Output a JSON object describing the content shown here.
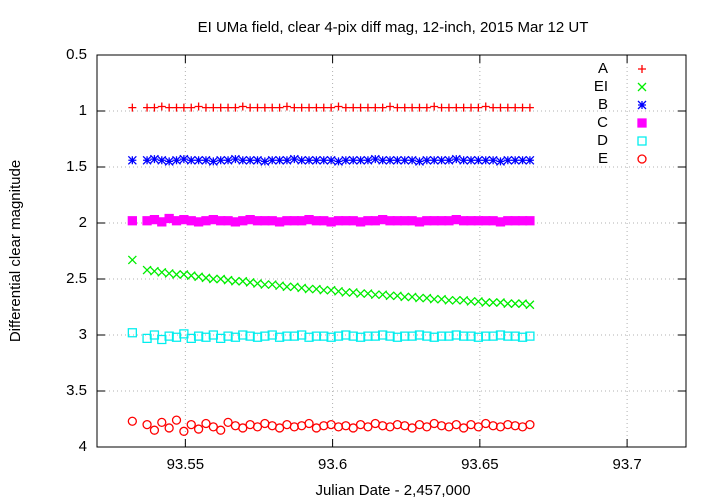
{
  "chart_data": {
    "type": "scatter",
    "title": "EI UMa field, clear 4-pix diff mag, 12-inch, 2015 Mar 12 UT",
    "x_label": "Julian Date - 2,457,000",
    "y_label": "Differential clear magnitude",
    "xlim": [
      93.52,
      93.72
    ],
    "xticks": [
      93.55,
      93.6,
      93.65,
      93.7
    ],
    "ylim": [
      4,
      0.5
    ],
    "yticks": [
      0.5,
      1,
      1.5,
      2,
      2.5,
      3,
      3.5,
      4
    ],
    "grid": true,
    "legend": "top-right",
    "x": [
      93.532,
      93.537,
      93.5395,
      93.542,
      93.5445,
      93.547,
      93.5495,
      93.552,
      93.5545,
      93.557,
      93.5595,
      93.562,
      93.5645,
      93.567,
      93.5695,
      93.572,
      93.5745,
      93.577,
      93.5795,
      93.582,
      93.5845,
      93.587,
      93.5895,
      93.592,
      93.5945,
      93.597,
      93.5995,
      93.602,
      93.6045,
      93.607,
      93.6095,
      93.612,
      93.6145,
      93.617,
      93.6195,
      93.622,
      93.6245,
      93.627,
      93.6295,
      93.632,
      93.6345,
      93.637,
      93.6395,
      93.642,
      93.6445,
      93.647,
      93.6495,
      93.652,
      93.6545,
      93.657,
      93.6595,
      93.662,
      93.6645,
      93.667
    ],
    "series": [
      {
        "name": "A",
        "color": "#ff0000",
        "marker": "plus",
        "values": [
          0.97,
          0.97,
          0.97,
          0.96,
          0.97,
          0.97,
          0.97,
          0.97,
          0.96,
          0.97,
          0.97,
          0.97,
          0.97,
          0.97,
          0.96,
          0.97,
          0.97,
          0.97,
          0.97,
          0.97,
          0.96,
          0.97,
          0.97,
          0.97,
          0.97,
          0.97,
          0.97,
          0.96,
          0.97,
          0.97,
          0.97,
          0.97,
          0.97,
          0.97,
          0.96,
          0.97,
          0.97,
          0.97,
          0.97,
          0.97,
          0.96,
          0.97,
          0.97,
          0.97,
          0.97,
          0.97,
          0.97,
          0.96,
          0.97,
          0.97,
          0.97,
          0.97,
          0.97,
          0.97
        ]
      },
      {
        "name": "EI",
        "color": "#00ee00",
        "marker": "cross",
        "values": [
          2.33,
          2.42,
          2.43,
          2.44,
          2.45,
          2.46,
          2.46,
          2.47,
          2.48,
          2.49,
          2.5,
          2.5,
          2.51,
          2.52,
          2.52,
          2.53,
          2.54,
          2.55,
          2.55,
          2.56,
          2.57,
          2.57,
          2.58,
          2.59,
          2.59,
          2.6,
          2.6,
          2.61,
          2.62,
          2.62,
          2.63,
          2.63,
          2.64,
          2.64,
          2.65,
          2.65,
          2.66,
          2.66,
          2.67,
          2.67,
          2.68,
          2.68,
          2.69,
          2.69,
          2.69,
          2.7,
          2.7,
          2.71,
          2.71,
          2.71,
          2.72,
          2.72,
          2.72,
          2.73
        ]
      },
      {
        "name": "B",
        "color": "#0000ff",
        "marker": "star",
        "values": [
          1.44,
          1.44,
          1.43,
          1.44,
          1.45,
          1.44,
          1.43,
          1.44,
          1.44,
          1.44,
          1.45,
          1.44,
          1.44,
          1.43,
          1.44,
          1.44,
          1.44,
          1.45,
          1.44,
          1.44,
          1.44,
          1.43,
          1.44,
          1.44,
          1.44,
          1.44,
          1.44,
          1.45,
          1.44,
          1.44,
          1.44,
          1.44,
          1.43,
          1.44,
          1.44,
          1.44,
          1.44,
          1.44,
          1.45,
          1.44,
          1.44,
          1.44,
          1.44,
          1.43,
          1.44,
          1.44,
          1.44,
          1.44,
          1.44,
          1.45,
          1.44,
          1.44,
          1.44,
          1.44
        ]
      },
      {
        "name": "C",
        "color": "#ff00ff",
        "marker": "filled-square",
        "values": [
          1.98,
          1.98,
          1.97,
          1.99,
          1.96,
          1.98,
          1.97,
          1.98,
          1.99,
          1.98,
          1.97,
          1.98,
          1.98,
          1.99,
          1.98,
          1.97,
          1.98,
          1.98,
          1.98,
          1.99,
          1.98,
          1.98,
          1.98,
          1.97,
          1.98,
          1.98,
          1.99,
          1.98,
          1.98,
          1.98,
          1.99,
          1.98,
          1.98,
          1.97,
          1.98,
          1.98,
          1.98,
          1.98,
          1.99,
          1.98,
          1.98,
          1.98,
          1.98,
          1.97,
          1.98,
          1.98,
          1.98,
          1.98,
          1.98,
          1.99,
          1.98,
          1.98,
          1.98,
          1.98
        ]
      },
      {
        "name": "D",
        "color": "#00eeee",
        "marker": "square",
        "values": [
          2.98,
          3.03,
          3.0,
          3.04,
          3.01,
          3.02,
          2.99,
          3.03,
          3.01,
          3.02,
          3.0,
          3.03,
          3.01,
          3.02,
          3.0,
          3.01,
          3.02,
          3.01,
          3.0,
          3.02,
          3.01,
          3.01,
          3.0,
          3.02,
          3.01,
          3.01,
          3.02,
          3.01,
          3.0,
          3.01,
          3.02,
          3.01,
          3.01,
          3.0,
          3.01,
          3.02,
          3.01,
          3.01,
          3.0,
          3.01,
          3.02,
          3.01,
          3.01,
          3.0,
          3.01,
          3.01,
          3.02,
          3.01,
          3.01,
          3.0,
          3.01,
          3.01,
          3.02,
          3.01
        ]
      },
      {
        "name": "E",
        "color": "#ff0000",
        "marker": "circle",
        "values": [
          3.77,
          3.8,
          3.85,
          3.78,
          3.83,
          3.76,
          3.86,
          3.8,
          3.84,
          3.79,
          3.82,
          3.85,
          3.78,
          3.81,
          3.83,
          3.8,
          3.82,
          3.79,
          3.81,
          3.83,
          3.8,
          3.82,
          3.81,
          3.79,
          3.83,
          3.81,
          3.8,
          3.82,
          3.81,
          3.83,
          3.8,
          3.82,
          3.79,
          3.81,
          3.82,
          3.8,
          3.81,
          3.83,
          3.8,
          3.82,
          3.79,
          3.81,
          3.82,
          3.8,
          3.83,
          3.8,
          3.82,
          3.79,
          3.81,
          3.82,
          3.8,
          3.81,
          3.82,
          3.8
        ]
      }
    ]
  }
}
